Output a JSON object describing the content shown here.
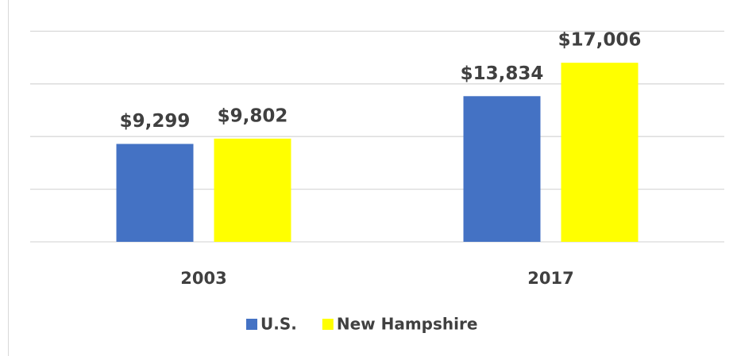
{
  "chart_data": {
    "type": "bar",
    "categories": [
      "2003",
      "2017"
    ],
    "series": [
      {
        "name": "U.S.",
        "color": "#4472c4",
        "values": [
          9299,
          13834
        ],
        "value_labels": [
          "$9,299",
          "$13,834"
        ]
      },
      {
        "name": "New Hampshire",
        "color": "#ffff00",
        "values": [
          9802,
          17006
        ],
        "value_labels": [
          "$9,802",
          "$17,006"
        ]
      }
    ],
    "ylim": [
      0,
      20000
    ],
    "yticks": [
      0,
      5000,
      10000,
      15000,
      20000
    ],
    "grid": true,
    "legend": "bottom"
  }
}
